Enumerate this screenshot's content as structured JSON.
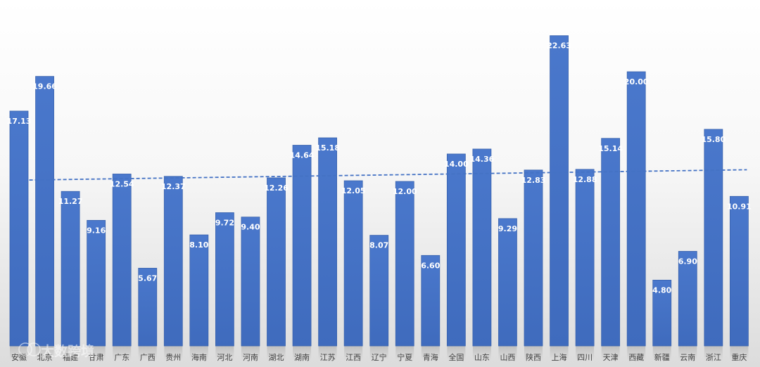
{
  "chart_data": {
    "type": "bar",
    "categories": [
      "安徽",
      "北京",
      "福建",
      "甘肃",
      "广东",
      "广西",
      "贵州",
      "海南",
      "河北",
      "河南",
      "湖北",
      "湖南",
      "江苏",
      "江西",
      "辽宁",
      "宁夏",
      "青海",
      "全国",
      "山东",
      "山西",
      "陕西",
      "上海",
      "四川",
      "天津",
      "西藏",
      "新疆",
      "云南",
      "浙江",
      "重庆"
    ],
    "values": [
      17.13,
      19.66,
      11.27,
      9.16,
      12.54,
      5.67,
      12.37,
      8.1,
      9.72,
      9.4,
      12.26,
      14.64,
      15.18,
      12.05,
      8.07,
      12.0,
      6.6,
      14.0,
      14.36,
      9.29,
      12.83,
      22.63,
      12.88,
      15.14,
      20.0,
      4.8,
      6.9,
      15.8,
      10.91
    ],
    "value_labels": [
      "17.13",
      "19.66",
      "11.27",
      "9.16",
      "12.54",
      "5.67",
      "12.37",
      "8.10",
      "9.72",
      "9.40",
      "12.26",
      "14.64",
      "15.18",
      "12.05",
      "8.07",
      "12.00",
      "6.60",
      "14.00",
      "14.36",
      "9.29",
      "12.83",
      "22.63",
      "12.88",
      "15.14",
      "20.00",
      "4.80",
      "6.90",
      "15.80",
      "10.91"
    ],
    "trendline": {
      "type": "linear",
      "style": "dashed",
      "start_value": 12.1,
      "end_value": 12.85
    },
    "ylim": [
      0,
      24
    ],
    "grid": false,
    "colors": {
      "bar": "#4472C4",
      "trendline": "#4472C4",
      "value_label": "#ffffff"
    }
  },
  "watermark": {
    "text": "大数跨境"
  }
}
